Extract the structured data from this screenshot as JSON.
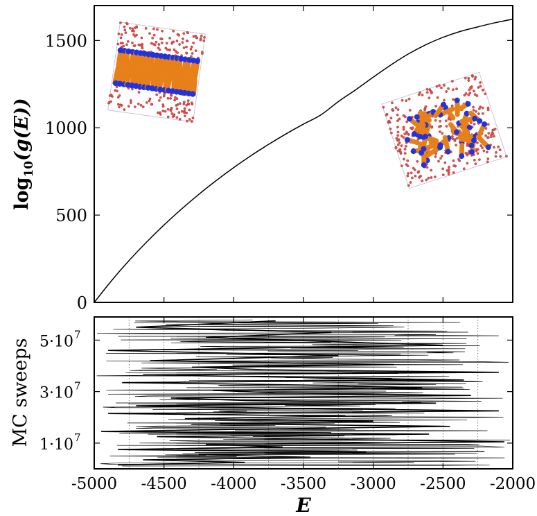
{
  "chart_data": [
    {
      "type": "line",
      "panel": "top",
      "ylabel": "log10(g(E))",
      "xlim": [
        -5000,
        -2000
      ],
      "ylim": [
        0,
        1700
      ],
      "yticks": [
        0,
        500,
        1000,
        1500
      ],
      "ytick_labels": [
        "0",
        "500",
        "1000",
        "1500"
      ],
      "grid": false,
      "series": [
        {
          "x": [
            -5000,
            -4875,
            -4750,
            -4625,
            -4500,
            -4375,
            -4250,
            -4125,
            -4000,
            -3875,
            -3750,
            -3625,
            -3500,
            -3375,
            -3250,
            -3125,
            -3000,
            -2875,
            -2750,
            -2625,
            -2500,
            -2375,
            -2250,
            -2125,
            -2000
          ],
          "y": [
            0,
            125,
            240,
            345,
            443,
            534,
            619,
            698,
            772,
            841,
            905,
            965,
            1021,
            1074,
            1150,
            1218,
            1290,
            1359,
            1422,
            1475,
            1518,
            1552,
            1578,
            1602,
            1622
          ]
        }
      ],
      "insets": [
        {
          "description": "ordered phase snapshot",
          "position": "top-left"
        },
        {
          "description": "disordered phase snapshot",
          "position": "right"
        }
      ]
    },
    {
      "type": "line",
      "panel": "bottom",
      "xlabel": "E",
      "ylabel": "MC sweeps",
      "xlim": [
        -5000,
        -2000
      ],
      "ylim": [
        0,
        59000000
      ],
      "yticks": [
        10000000,
        30000000,
        50000000
      ],
      "ytick_labels": [
        "1·10",
        "3·10",
        "5·10"
      ],
      "ytick_exponent": "7",
      "xticks": [
        -5000,
        -4500,
        -4000,
        -3500,
        -3000,
        -2500,
        -2000
      ],
      "xtick_labels": [
        "-5000",
        "-4500",
        "-4000",
        "-3500",
        "-3000",
        "-2500",
        "-2000"
      ],
      "vertical_guides_x": [
        -4750,
        -4500,
        -4250,
        -4000,
        -3750,
        -3500,
        -3250,
        -3000,
        -2750,
        -2500,
        -2250
      ],
      "trajectory": {
        "x": [
          -4830,
          -3920,
          -4650,
          -3450,
          -4250,
          -3050,
          -4830,
          -3650,
          -4200,
          -2060,
          -3350,
          -4550,
          -2600,
          -4950,
          -3800,
          -2450,
          -4100,
          -3000,
          -4350,
          -3200,
          -4900,
          -2100,
          -3600,
          -4700,
          -2550,
          -3900,
          -4450,
          -2300,
          -3700,
          -4150,
          -2650,
          -3400,
          -4800,
          -2350,
          -3500,
          -4650,
          -2100,
          -3800,
          -4300,
          -2850,
          -4600,
          -3250,
          -4900,
          -2500,
          -4200,
          -3300,
          -4700,
          -3700
        ],
        "y": [
          1500000,
          2500000,
          3500000,
          4500000,
          5500000,
          6500000,
          7500000,
          8500000,
          9500000,
          10500000,
          11500000,
          12500000,
          13500000,
          14500000,
          15500000,
          16500000,
          17500000,
          18500000,
          19500000,
          20500000,
          21500000,
          22500000,
          23500000,
          24500000,
          25500000,
          26500000,
          27500000,
          28500000,
          29500000,
          30500000,
          31500000,
          32500000,
          33500000,
          34500000,
          35500000,
          36500000,
          37500000,
          38500000,
          39500000,
          40500000,
          42000000,
          44000000,
          46000000,
          48000000,
          51000000,
          53000000,
          55000000,
          57500000
        ]
      }
    }
  ],
  "labels": {
    "top_ylabel_main": "log",
    "top_ylabel_sub": "10",
    "top_ylabel_rest": "(g(E))",
    "bottom_ylabel": "MC sweeps",
    "xlabel": "E",
    "ytick_exp": "7"
  },
  "colors": {
    "line": "#000000",
    "particle_red": "#d9534f",
    "rod_orange": "#e8801a",
    "rod_blue": "#2233dd",
    "box_edge": "#bbbbcc",
    "guide": "#555555"
  }
}
